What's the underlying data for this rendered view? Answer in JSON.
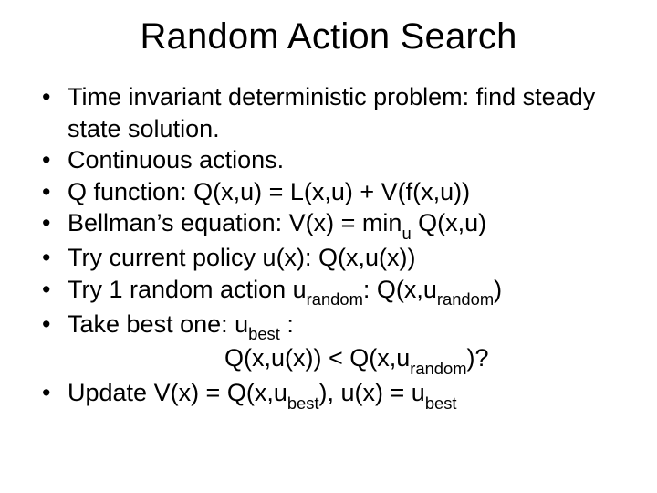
{
  "background_color": "#ffffff",
  "text_color": "#000000",
  "font_family": "Arial",
  "title": {
    "text": "Random Action Search",
    "fontsize": 40,
    "align": "center"
  },
  "body_fontsize": 27,
  "bullets": [
    {
      "text": "Time invariant deterministic problem: find steady state solution."
    },
    {
      "text": "Continuous actions."
    },
    {
      "text": "Q function: Q(x,u) = L(x,u) + V(f(x,u))"
    },
    {
      "text_html": "Bellman’s equation: V(x) = min<sub>u</sub> Q(x,u)"
    },
    {
      "text": "Try current policy u(x): Q(x,u(x))"
    },
    {
      "text_html": "Try 1 random action u<sub>random</sub>: Q(x,u<sub>random</sub>)"
    },
    {
      "text_html": "Take best one: u<sub>best</sub> :",
      "continuation_html": "Q(x,u(x)) < Q(x,u<sub>random</sub>)?"
    },
    {
      "text_html": "Update V(x) = Q(x,u<sub>best</sub>), u(x) = u<sub>best</sub>"
    }
  ]
}
